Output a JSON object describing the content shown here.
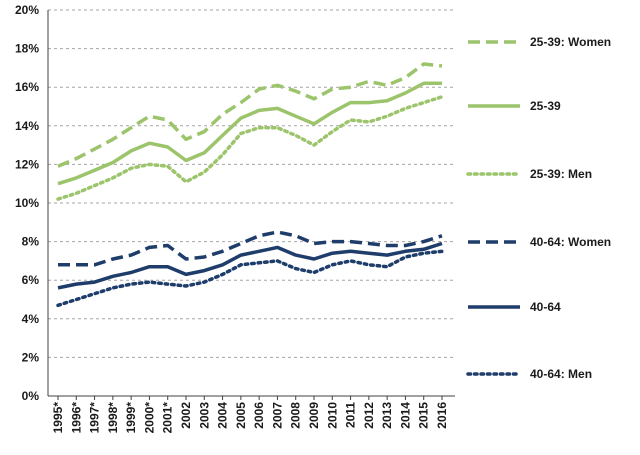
{
  "chart_data": {
    "type": "line",
    "x": [
      "1995*",
      "1996*",
      "1997*",
      "1998*",
      "1999*",
      "2000*",
      "2001*",
      "2002",
      "2003",
      "2004",
      "2005",
      "2006",
      "2007",
      "2008",
      "2009",
      "2010",
      "2011",
      "2012",
      "2013",
      "2014",
      "2015",
      "2016"
    ],
    "ylim": [
      0,
      20
    ],
    "y_ticks": [
      "0%",
      "2%",
      "4%",
      "6%",
      "8%",
      "10%",
      "12%",
      "14%",
      "16%",
      "18%",
      "20%"
    ],
    "grid": "horizontal dashed",
    "legend_placement": "right",
    "series": [
      {
        "name": "25-39: Women",
        "color": "#9cc46a",
        "dash": "dashed",
        "values": [
          11.9,
          12.3,
          12.8,
          13.3,
          13.9,
          14.5,
          14.3,
          13.3,
          13.7,
          14.6,
          15.2,
          15.9,
          16.1,
          15.8,
          15.4,
          15.9,
          16.0,
          16.3,
          16.1,
          16.5,
          17.2,
          17.1
        ]
      },
      {
        "name": "25-39",
        "color": "#9cc46a",
        "dash": "solid",
        "values": [
          11.0,
          11.3,
          11.7,
          12.1,
          12.7,
          13.1,
          12.9,
          12.2,
          12.6,
          13.5,
          14.4,
          14.8,
          14.9,
          14.5,
          14.1,
          14.7,
          15.2,
          15.2,
          15.3,
          15.7,
          16.2,
          16.2
        ]
      },
      {
        "name": "25-39: Men",
        "color": "#9cc46a",
        "dash": "dotted",
        "values": [
          10.2,
          10.5,
          10.9,
          11.3,
          11.8,
          12.0,
          11.9,
          11.1,
          11.6,
          12.5,
          13.6,
          13.9,
          13.9,
          13.5,
          13.0,
          13.7,
          14.3,
          14.2,
          14.5,
          14.9,
          15.2,
          15.5
        ]
      },
      {
        "name": "40-64: Women",
        "color": "#1f3d6b",
        "dash": "dashed",
        "values": [
          6.8,
          6.8,
          6.8,
          7.1,
          7.3,
          7.7,
          7.8,
          7.1,
          7.2,
          7.5,
          7.9,
          8.3,
          8.5,
          8.3,
          7.9,
          8.0,
          8.0,
          7.9,
          7.8,
          7.8,
          8.0,
          8.3
        ]
      },
      {
        "name": "40-64",
        "color": "#1f3d6b",
        "dash": "solid",
        "values": [
          5.6,
          5.8,
          5.9,
          6.2,
          6.4,
          6.7,
          6.7,
          6.3,
          6.5,
          6.8,
          7.3,
          7.5,
          7.7,
          7.3,
          7.1,
          7.4,
          7.5,
          7.4,
          7.3,
          7.5,
          7.6,
          7.9
        ]
      },
      {
        "name": "40-64: Men",
        "color": "#1f3d6b",
        "dash": "dotted",
        "values": [
          4.7,
          5.0,
          5.3,
          5.6,
          5.8,
          5.9,
          5.8,
          5.7,
          5.9,
          6.3,
          6.8,
          6.9,
          7.0,
          6.6,
          6.4,
          6.8,
          7.0,
          6.8,
          6.7,
          7.2,
          7.4,
          7.5
        ]
      }
    ]
  }
}
